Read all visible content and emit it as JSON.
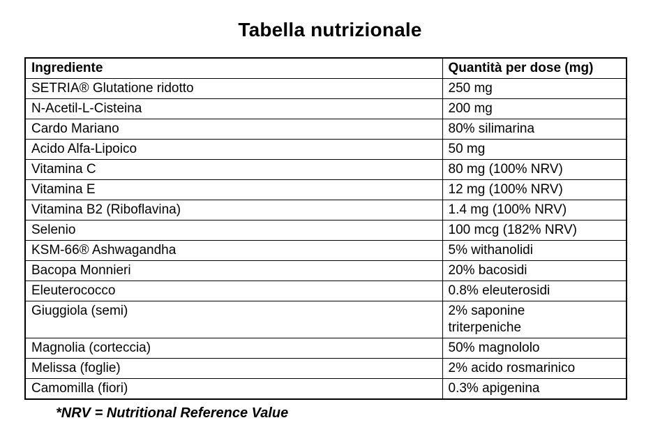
{
  "page": {
    "background_color": "#ffffff",
    "text_color": "#000000",
    "border_color": "#000000"
  },
  "title": "Tabella nutrizionale",
  "table": {
    "headers": [
      "Ingrediente",
      "Quantità per dose (mg)"
    ],
    "rows": [
      {
        "ingredient": "SETRIA® Glutatione ridotto",
        "quantity": "250 mg"
      },
      {
        "ingredient": "N-Acetil-L-Cisteina",
        "quantity": "200 mg"
      },
      {
        "ingredient": "Cardo Mariano",
        "quantity": "80% silimarina"
      },
      {
        "ingredient": "Acido Alfa-Lipoico",
        "quantity": "50 mg"
      },
      {
        "ingredient": "Vitamina C",
        "quantity": "80 mg (100% NRV)"
      },
      {
        "ingredient": "Vitamina E",
        "quantity": "12 mg (100% NRV)"
      },
      {
        "ingredient": "Vitamina B2 (Riboflavina)",
        "quantity": "1.4 mg (100% NRV)"
      },
      {
        "ingredient": "Selenio",
        "quantity": "100 mcg (182% NRV)"
      },
      {
        "ingredient": "KSM-66® Ashwagandha",
        "quantity": "5% withanolidi"
      },
      {
        "ingredient": "Bacopa Monnieri",
        "quantity": "20% bacosidi"
      },
      {
        "ingredient": "Eleuterococco",
        "quantity": "0.8% eleuterosidi"
      },
      {
        "ingredient": "Giuggiola (semi)",
        "quantity": "2% saponine\ntriterpeniche"
      },
      {
        "ingredient": "Magnolia (corteccia)",
        "quantity": "50% magnololo"
      },
      {
        "ingredient": "Melissa (foglie)",
        "quantity": "2% acido rosmarinico"
      },
      {
        "ingredient": "Camomilla (fiori)",
        "quantity": "0.3% apigenina"
      }
    ]
  },
  "footnote": "*NRV = Nutritional Reference Value"
}
